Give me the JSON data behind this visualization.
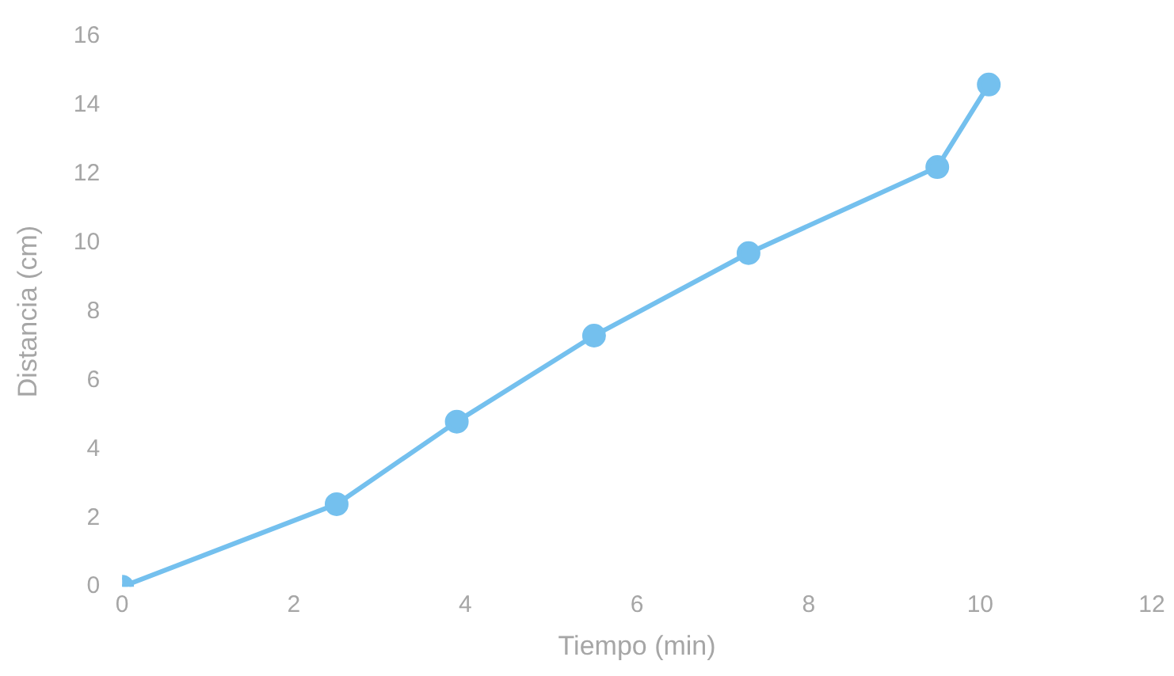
{
  "chart_data": {
    "type": "line",
    "xlabel": "Tiempo (min)",
    "ylabel": "Distancia (cm)",
    "x": [
      0,
      2.5,
      3.9,
      5.5,
      7.3,
      9.5,
      10.1
    ],
    "series": [
      {
        "color": "#74c0ee",
        "values": [
          0,
          2.4,
          4.8,
          7.3,
          9.7,
          12.2,
          14.6
        ]
      }
    ],
    "xlim": [
      0,
      12
    ],
    "xticks": [
      0,
      2,
      4,
      6,
      8,
      10,
      12
    ],
    "ylim": [
      0,
      16
    ],
    "yticks": [
      0,
      2,
      4,
      6,
      8,
      10,
      12,
      14,
      16
    ],
    "grid": false,
    "legend": false,
    "marker": "circle",
    "line_style": "solid"
  }
}
